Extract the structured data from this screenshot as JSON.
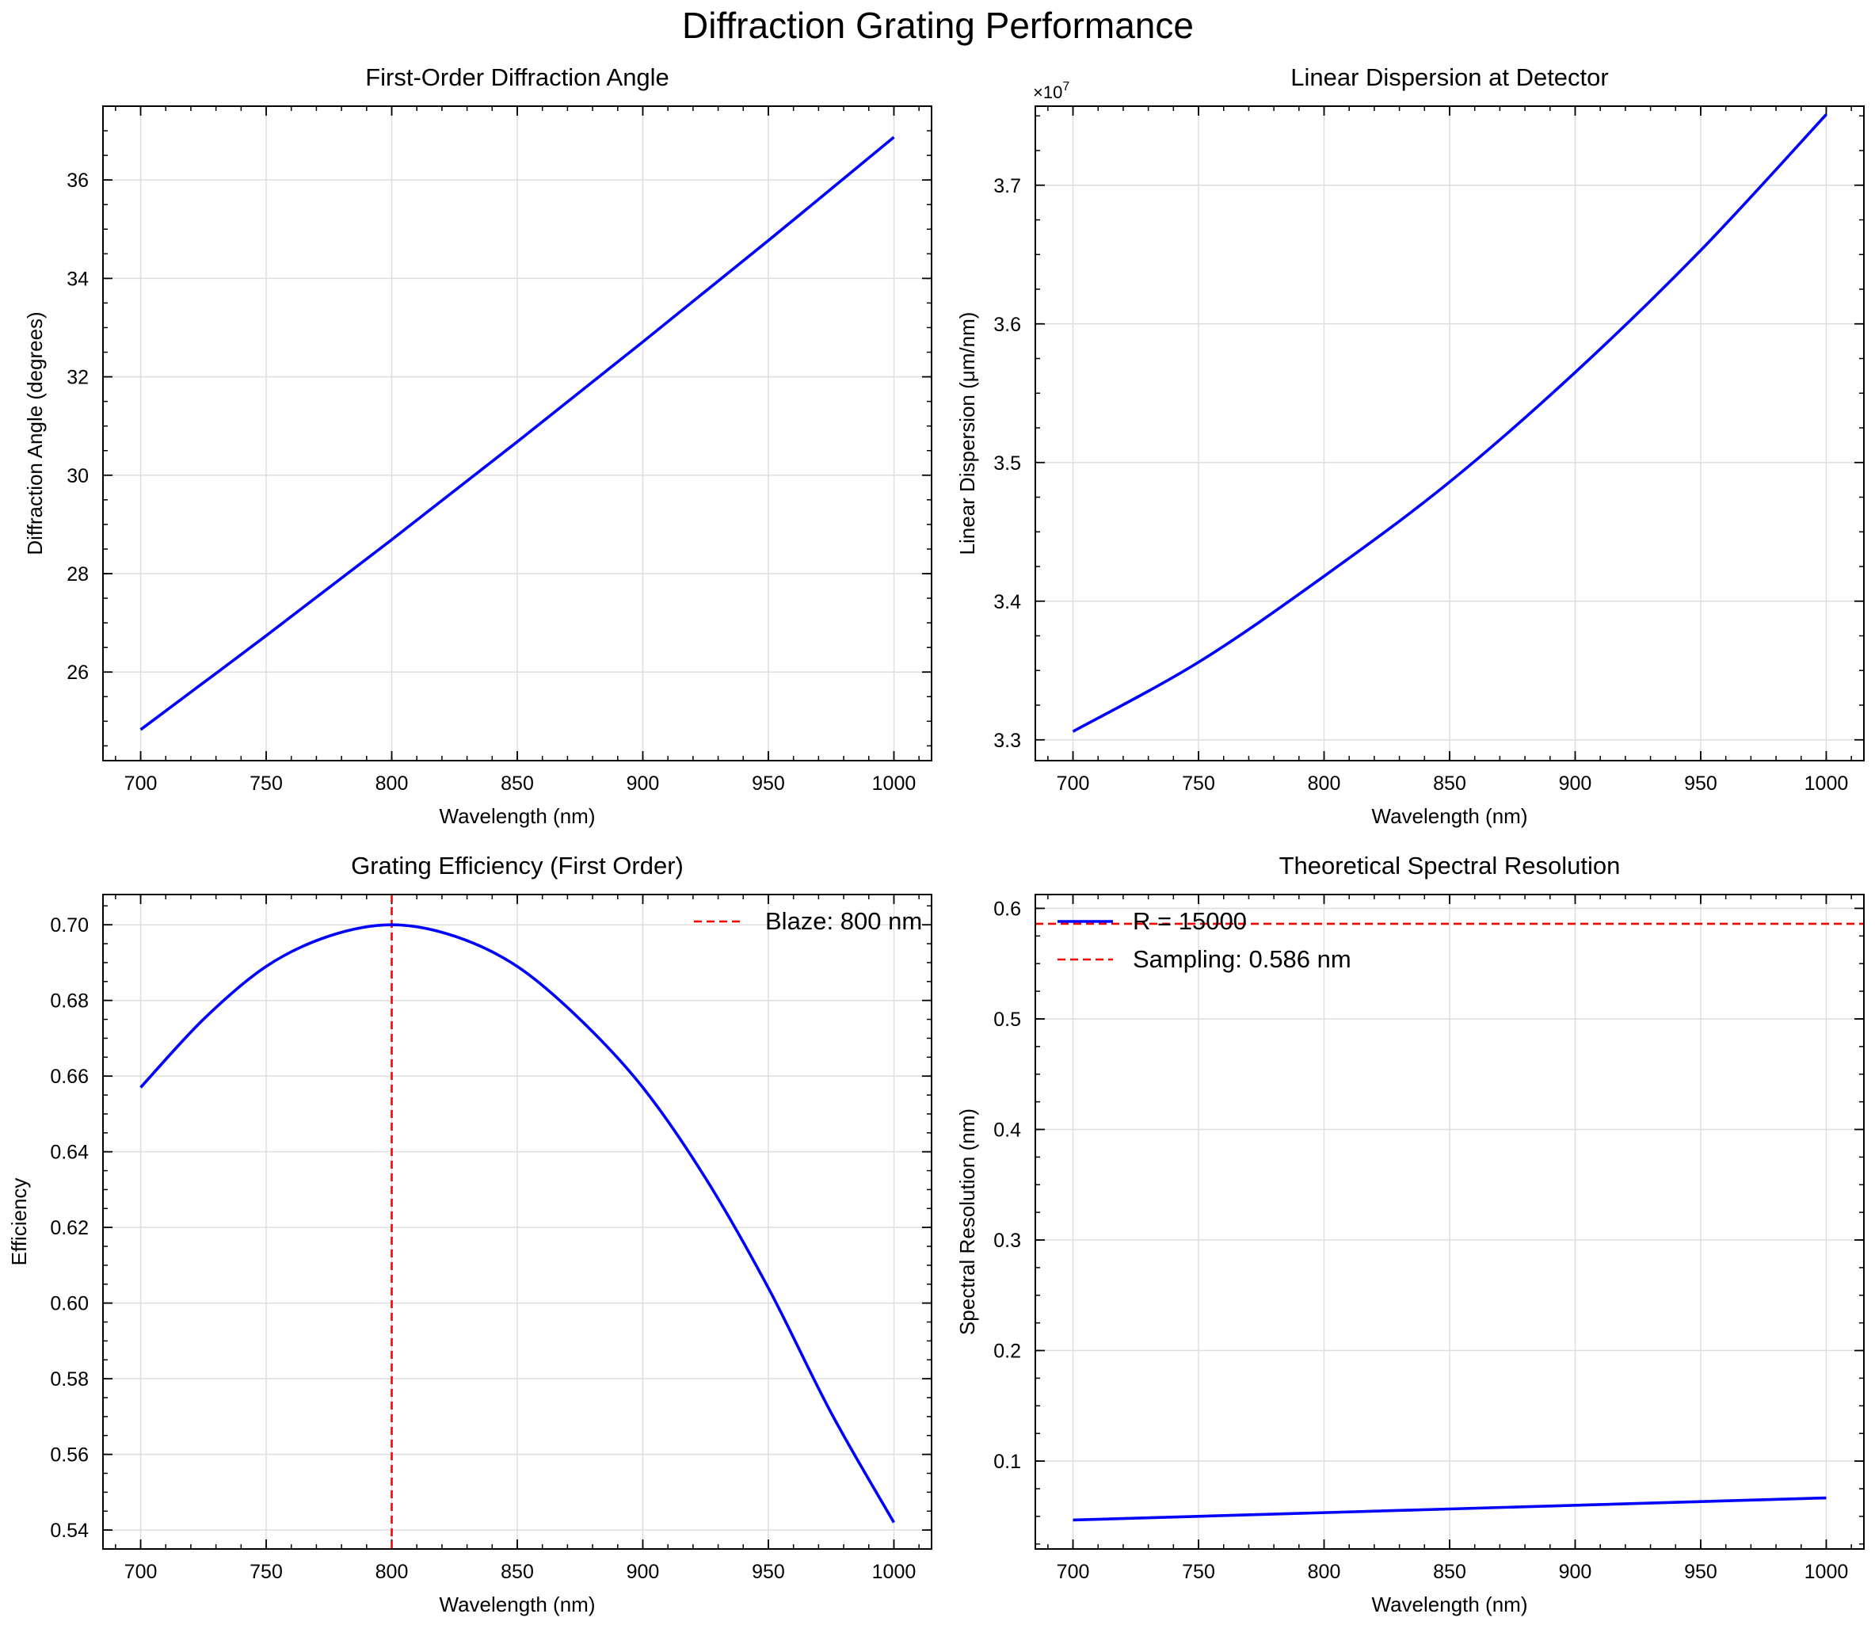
{
  "figure": {
    "title": "Diffraction Grating Performance"
  },
  "colors": {
    "series": "#0000ff",
    "reference": "#ff0000",
    "grid": "#dedede",
    "axes": "#000000"
  },
  "chart_data": [
    {
      "type": "line",
      "title": "First-Order Diffraction Angle",
      "xlabel": "Wavelength (nm)",
      "ylabel": "Diffraction Angle (degrees)",
      "xlim": [
        685,
        1015
      ],
      "ylim": [
        24.2,
        37.5
      ],
      "xticks": [
        700,
        750,
        800,
        850,
        900,
        950,
        1000
      ],
      "yticks": [
        26,
        28,
        30,
        32,
        34,
        36
      ],
      "grid": true,
      "series": [
        {
          "x": [
            700,
            750,
            800,
            850,
            900,
            950,
            1000
          ],
          "y": [
            24.83,
            26.74,
            28.69,
            30.68,
            32.71,
            34.77,
            36.87
          ]
        }
      ]
    },
    {
      "type": "line",
      "title": "Linear Dispersion at Detector",
      "xlabel": "Wavelength (nm)",
      "ylabel": "Linear Dispersion (μm/nm)",
      "offset_text": "×10^7",
      "xlim": [
        685,
        1015
      ],
      "ylim": [
        3.285,
        3.757
      ],
      "xticks": [
        700,
        750,
        800,
        850,
        900,
        950,
        1000
      ],
      "yticks": [
        3.3,
        3.4,
        3.5,
        3.6,
        3.7
      ],
      "grid": true,
      "series": [
        {
          "x": [
            700,
            750,
            800,
            850,
            900,
            950,
            1000
          ],
          "y": [
            3.306,
            3.356,
            3.418,
            3.486,
            3.565,
            3.653,
            3.751
          ]
        }
      ]
    },
    {
      "type": "line",
      "title": "Grating Efficiency (First Order)",
      "xlabel": "Wavelength (nm)",
      "ylabel": "Efficiency",
      "xlim": [
        685,
        1015
      ],
      "ylim": [
        0.535,
        0.708
      ],
      "xticks": [
        700,
        750,
        800,
        850,
        900,
        950,
        1000
      ],
      "yticks": [
        0.54,
        0.56,
        0.58,
        0.6,
        0.62,
        0.64,
        0.66,
        0.68,
        0.7
      ],
      "grid": true,
      "legend_position": "upper right",
      "series": [
        {
          "x": [
            700,
            725,
            750,
            775,
            800,
            825,
            850,
            875,
            900,
            925,
            950,
            975,
            1000
          ],
          "y": [
            0.657,
            0.675,
            0.689,
            0.697,
            0.7,
            0.697,
            0.689,
            0.675,
            0.657,
            0.633,
            0.604,
            0.571,
            0.542
          ]
        }
      ],
      "vlines": [
        {
          "x": 800,
          "label": "Blaze: 800 nm",
          "style": "dashed"
        }
      ]
    },
    {
      "type": "line",
      "title": "Theoretical Spectral Resolution",
      "xlabel": "Wavelength (nm)",
      "ylabel": "Spectral Resolution (nm)",
      "xlim": [
        685,
        1015
      ],
      "ylim": [
        0.0205,
        0.6125
      ],
      "xticks": [
        700,
        750,
        800,
        850,
        900,
        950,
        1000
      ],
      "yticks": [
        0.1,
        0.2,
        0.3,
        0.4,
        0.5,
        0.6
      ],
      "grid": true,
      "legend_position": "upper left",
      "series": [
        {
          "name": "R = 15000",
          "x": [
            700,
            1000
          ],
          "y": [
            0.0467,
            0.0667
          ]
        }
      ],
      "hlines": [
        {
          "y": 0.586,
          "label": "Sampling: 0.586 nm",
          "style": "dashed"
        }
      ]
    }
  ]
}
